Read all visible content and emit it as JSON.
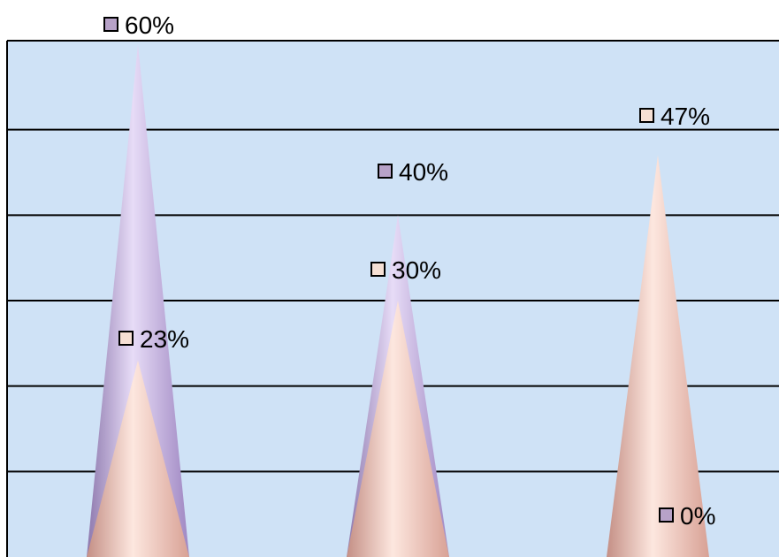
{
  "chart_data": {
    "type": "bar",
    "shape": "cone",
    "categories": [
      "",
      "",
      ""
    ],
    "series": [
      {
        "values": [
          60,
          40,
          0
        ],
        "labels": [
          "60%",
          "40%",
          "0%"
        ],
        "color": "#c9b3e6",
        "marker_color": "#b7a2c8"
      },
      {
        "values": [
          23,
          30,
          47
        ],
        "labels": [
          "23%",
          "30%",
          "47%"
        ],
        "color": "#f2c2b8",
        "marker_color": "#f6e0d4"
      }
    ],
    "ylim": [
      0,
      60
    ],
    "grid": true,
    "plot_background": "#cfe2f6"
  }
}
